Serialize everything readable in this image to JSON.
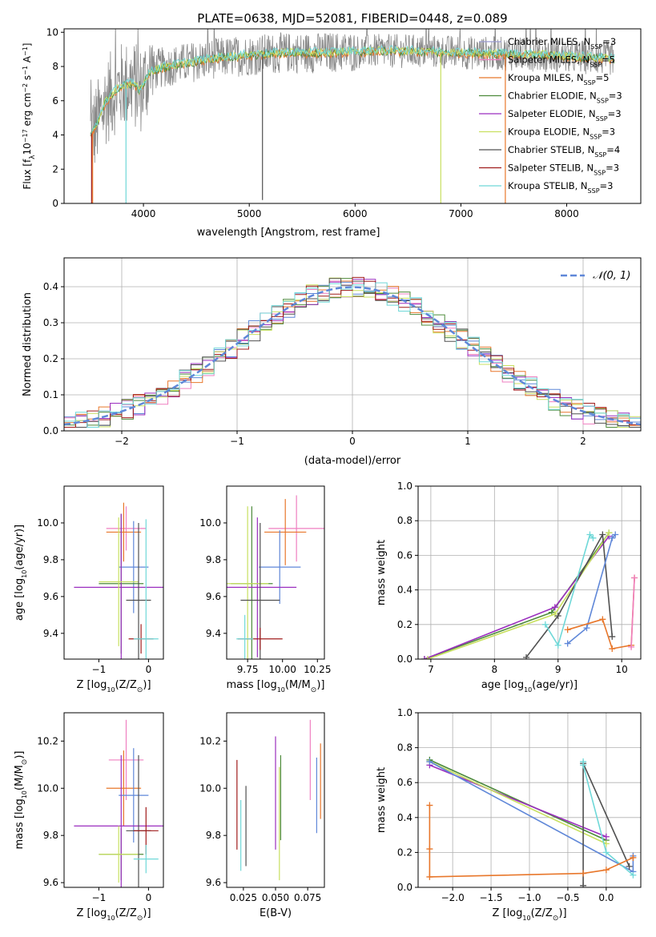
{
  "figure": {
    "title": "PLATE=0638, MJD=52081, FIBERID=0448, z=0.089"
  },
  "colors": {
    "chabrier_miles": "#9b9bd0",
    "salpeter_miles": "#ef7fc0",
    "kroupa_miles": "#e8772b",
    "chabrier_elodie": "#4c8a3a",
    "salpeter_elodie": "#9b2fbf",
    "kroupa_elodie": "#c8e060",
    "chabrier_stelib": "#505050",
    "salpeter_stelib": "#a01c1c",
    "kroupa_stelib": "#6fd8d8",
    "blue_model": "#5f87d8",
    "gaussian": "#5f87d8",
    "grid": "#b0b0b0"
  },
  "chart_data": [
    {
      "id": "spectrum",
      "type": "line",
      "xlabel": "wavelength [Angstrom, rest frame]",
      "ylabel_parts": [
        "Flux [f",
        "λ",
        "10",
        "−17",
        " erg cm",
        "−2",
        " s",
        "−1",
        " A",
        "−1",
        "]"
      ],
      "xlim": [
        3250,
        8700
      ],
      "ylim": [
        0,
        10.2
      ],
      "xticks": [
        4000,
        5000,
        6000,
        7000,
        8000
      ],
      "yticks": [
        0,
        2,
        4,
        6,
        8,
        10
      ],
      "grid": false,
      "legend_placement": "upper-right",
      "legend": [
        {
          "name": "Chabrier MILES, N",
          "sub": "SSP",
          "suffix": "=3",
          "color_key": "chabrier_miles"
        },
        {
          "name": "Salpeter MILES, N",
          "sub": "SSP",
          "suffix": "=5",
          "color_key": "salpeter_miles"
        },
        {
          "name": "Kroupa MILES, N",
          "sub": "SSP",
          "suffix": "=5",
          "color_key": "kroupa_miles"
        },
        {
          "name": "Chabrier ELODIE, N",
          "sub": "SSP",
          "suffix": "=3",
          "color_key": "chabrier_elodie"
        },
        {
          "name": "Salpeter ELODIE, N",
          "sub": "SSP",
          "suffix": "=3",
          "color_key": "salpeter_elodie"
        },
        {
          "name": "Kroupa ELODIE, N",
          "sub": "SSP",
          "suffix": "=3",
          "color_key": "kroupa_elodie"
        },
        {
          "name": "Chabrier STELIB, N",
          "sub": "SSP",
          "suffix": "=4",
          "color_key": "chabrier_stelib"
        },
        {
          "name": "Salpeter STELIB, N",
          "sub": "SSP",
          "suffix": "=3",
          "color_key": "salpeter_stelib"
        },
        {
          "name": "Kroupa STELIB, N",
          "sub": "SSP",
          "suffix": "=3",
          "color_key": "kroupa_stelib"
        }
      ],
      "continuum": {
        "x": [
          3500,
          3560,
          3640,
          3700,
          3800,
          3900,
          3970,
          4050,
          4150,
          4300,
          4500,
          4700,
          4900,
          5100,
          5300,
          5600,
          5900,
          6200,
          6500,
          6800,
          7100,
          7400,
          7700,
          8000,
          8300,
          8450
        ],
        "y": [
          4.0,
          4.6,
          5.9,
          6.4,
          6.9,
          7.0,
          6.6,
          7.6,
          7.9,
          8.1,
          8.3,
          8.5,
          8.6,
          8.7,
          8.8,
          8.8,
          8.85,
          8.9,
          8.9,
          8.85,
          8.8,
          8.75,
          8.7,
          8.6,
          8.5,
          8.45
        ]
      },
      "sharp_drops": [
        {
          "x": 3510,
          "y": 0,
          "color_key": "salpeter_stelib"
        },
        {
          "x": 3520,
          "y": 0,
          "color_key": "kroupa_miles"
        },
        {
          "x": 3835,
          "y": 0,
          "color_key": "kroupa_stelib"
        },
        {
          "x": 5125,
          "y": 0.2,
          "color_key": "chabrier_stelib"
        },
        {
          "x": 6810,
          "y": 0,
          "color_key": "kroupa_elodie"
        },
        {
          "x": 7420,
          "y": 0,
          "color_key": "kroupa_miles"
        }
      ]
    },
    {
      "id": "residuals",
      "type": "histogram",
      "xlabel": "(data-model)/error",
      "ylabel": "Normed distribution",
      "xlim": [
        -2.5,
        2.5
      ],
      "ylim": [
        0,
        0.48
      ],
      "xticks": [
        -2,
        -1,
        0,
        1,
        2
      ],
      "xtick_labels": [
        "−2",
        "−1",
        "0",
        "1",
        "2"
      ],
      "yticks": [
        0,
        0.1,
        0.2,
        0.3,
        0.4
      ],
      "ytick_labels": [
        "0.0",
        "0.1",
        "0.2",
        "0.3",
        "0.4"
      ],
      "grid": true,
      "legend_placement": "upper-right",
      "gaussian_label_prefix": "𝒩(0, 1)",
      "bin_width": 0.1,
      "x_start": -2.5,
      "series_count": 9
    },
    {
      "id": "age_vs_z",
      "type": "scatter",
      "xlabel": "Z [log",
      "xlabel_parts": [
        "Z [log",
        "10",
        "(Z/Z",
        "⊙",
        ")]"
      ],
      "ylabel_parts": [
        "age  [log",
        "10",
        "(age/yr)]"
      ],
      "xlim": [
        -1.7,
        0.3
      ],
      "ylim": [
        9.26,
        10.2
      ],
      "xticks": [
        -1,
        0
      ],
      "xtick_labels": [
        "−1",
        "0"
      ],
      "yticks": [
        9.4,
        9.6,
        9.8,
        10.0
      ],
      "ytick_labels": [
        "9.4",
        "9.6",
        "9.8",
        "10.0"
      ],
      "points": [
        {
          "x": -0.45,
          "y": 9.97,
          "xerr": 0.4,
          "yerr": 0.12,
          "color_key": "salpeter_miles"
        },
        {
          "x": -0.5,
          "y": 9.95,
          "xerr": 0.35,
          "yerr": 0.16,
          "color_key": "kroupa_miles"
        },
        {
          "x": -0.3,
          "y": 9.76,
          "xerr": 0.3,
          "yerr": 0.25,
          "color_key": "blue_model"
        },
        {
          "x": -0.55,
          "y": 9.67,
          "xerr": 0.45,
          "yerr": 0.38,
          "color_key": "chabrier_elodie"
        },
        {
          "x": -0.55,
          "y": 9.65,
          "xerr": 0.95,
          "yerr": 0.4,
          "color_key": "salpeter_elodie"
        },
        {
          "x": -0.6,
          "y": 9.68,
          "xerr": 0.4,
          "yerr": 0.35,
          "color_key": "kroupa_elodie"
        },
        {
          "x": -0.2,
          "y": 9.58,
          "xerr": 0.25,
          "yerr": 0.42,
          "color_key": "chabrier_stelib"
        },
        {
          "x": -0.15,
          "y": 9.37,
          "xerr": 0.25,
          "yerr": 0.08,
          "color_key": "salpeter_stelib"
        },
        {
          "x": -0.05,
          "y": 9.37,
          "xerr": 0.25,
          "yerr": 0.65,
          "color_key": "kroupa_stelib"
        }
      ]
    },
    {
      "id": "age_vs_mass",
      "type": "scatter",
      "xlabel_parts": [
        "mass [log",
        "10",
        "(M/M",
        "⊙",
        ")]"
      ],
      "xlim": [
        9.6,
        10.3
      ],
      "ylim": [
        9.26,
        10.2
      ],
      "xticks": [
        9.75,
        10.0,
        10.25
      ],
      "xtick_labels": [
        "9.75",
        "10.00",
        "10.25"
      ],
      "yticks": [
        9.4,
        9.6,
        9.8,
        10.0
      ],
      "ytick_labels": [
        "9.4",
        "9.6",
        "9.8",
        "10.0"
      ],
      "points": [
        {
          "x": 10.1,
          "y": 9.97,
          "xerr": 0.2,
          "yerr": 0.18,
          "color_key": "salpeter_miles"
        },
        {
          "x": 10.02,
          "y": 9.95,
          "xerr": 0.15,
          "yerr": 0.18,
          "color_key": "kroupa_miles"
        },
        {
          "x": 9.98,
          "y": 9.76,
          "xerr": 0.15,
          "yerr": 0.2,
          "color_key": "blue_model"
        },
        {
          "x": 9.78,
          "y": 9.67,
          "xerr": 0.15,
          "yerr": 0.42,
          "color_key": "chabrier_elodie"
        },
        {
          "x": 9.82,
          "y": 9.65,
          "xerr": 0.28,
          "yerr": 0.38,
          "color_key": "salpeter_elodie"
        },
        {
          "x": 9.75,
          "y": 9.67,
          "xerr": 0.15,
          "yerr": 0.42,
          "color_key": "kroupa_elodie"
        },
        {
          "x": 9.84,
          "y": 9.58,
          "xerr": 0.14,
          "yerr": 0.42,
          "color_key": "chabrier_stelib"
        },
        {
          "x": 9.84,
          "y": 9.37,
          "xerr": 0.16,
          "yerr": 0.06,
          "color_key": "salpeter_stelib"
        },
        {
          "x": 9.73,
          "y": 9.37,
          "xerr": 0.06,
          "yerr": 0.13,
          "color_key": "kroupa_stelib"
        }
      ]
    },
    {
      "id": "weight_vs_age",
      "type": "line",
      "xlabel_parts": [
        "age  [log",
        "10",
        "(age/yr)]"
      ],
      "ylabel": "mass weight",
      "xlim": [
        6.8,
        10.3
      ],
      "ylim": [
        0,
        1.0
      ],
      "xticks": [
        7,
        8,
        9,
        10
      ],
      "yticks": [
        0.0,
        0.2,
        0.4,
        0.6,
        0.8,
        1.0
      ],
      "ytick_labels": [
        "0.0",
        "0.2",
        "0.4",
        "0.6",
        "0.8",
        "1.0"
      ],
      "grid": true,
      "series": [
        {
          "color_key": "chabrier_elodie",
          "x": [
            6.9,
            8.9,
            9.8
          ],
          "y": [
            0.0,
            0.27,
            0.73
          ]
        },
        {
          "color_key": "salpeter_elodie",
          "x": [
            6.9,
            8.95,
            9.8
          ],
          "y": [
            0.0,
            0.3,
            0.71
          ]
        },
        {
          "color_key": "kroupa_elodie",
          "x": [
            6.95,
            8.95,
            9.8
          ],
          "y": [
            0.0,
            0.26,
            0.73
          ]
        },
        {
          "color_key": "chabrier_stelib",
          "x": [
            8.5,
            9.0,
            9.7,
            9.85
          ],
          "y": [
            0.01,
            0.25,
            0.72,
            0.13
          ]
        },
        {
          "color_key": "kroupa_stelib",
          "x": [
            8.8,
            9.0,
            9.5,
            9.55
          ],
          "y": [
            0.2,
            0.08,
            0.72,
            0.7
          ]
        },
        {
          "color_key": "blue_model",
          "x": [
            9.15,
            9.45,
            9.85,
            9.9
          ],
          "y": [
            0.09,
            0.18,
            0.7,
            0.72
          ]
        },
        {
          "color_key": "kroupa_miles",
          "x": [
            9.15,
            9.7,
            9.85,
            10.15,
            10.2
          ],
          "y": [
            0.17,
            0.23,
            0.06,
            0.08,
            0.47
          ]
        },
        {
          "color_key": "salpeter_miles",
          "x": [
            10.15,
            10.2
          ],
          "y": [
            0.07,
            0.47
          ]
        }
      ]
    },
    {
      "id": "mass_vs_z",
      "type": "scatter",
      "xlabel_parts": [
        "Z [log",
        "10",
        "(Z/Z",
        "⊙",
        ")]"
      ],
      "ylabel_parts": [
        "mass [log",
        "10",
        "(M/M",
        "⊙",
        ")]"
      ],
      "xlim": [
        -1.7,
        0.3
      ],
      "ylim": [
        9.58,
        10.32
      ],
      "xticks": [
        -1,
        0
      ],
      "xtick_labels": [
        "−1",
        "0"
      ],
      "yticks": [
        9.6,
        9.8,
        10.0,
        10.2
      ],
      "ytick_labels": [
        "9.6",
        "9.8",
        "10.0",
        "10.2"
      ],
      "points": [
        {
          "x": -0.45,
          "y": 10.12,
          "xerr": 0.35,
          "yerr": 0.17,
          "color_key": "salpeter_miles"
        },
        {
          "x": -0.5,
          "y": 10.0,
          "xerr": 0.35,
          "yerr": 0.16,
          "color_key": "kroupa_miles"
        },
        {
          "x": -0.3,
          "y": 9.97,
          "xerr": 0.3,
          "yerr": 0.2,
          "color_key": "blue_model"
        },
        {
          "x": -0.55,
          "y": 9.72,
          "xerr": 0.45,
          "yerr": 0.11,
          "color_key": "chabrier_elodie"
        },
        {
          "x": -0.55,
          "y": 9.84,
          "xerr": 0.95,
          "yerr": 0.3,
          "color_key": "salpeter_elodie"
        },
        {
          "x": -0.6,
          "y": 9.72,
          "xerr": 0.4,
          "yerr": 0.12,
          "color_key": "kroupa_elodie"
        },
        {
          "x": -0.2,
          "y": 9.82,
          "xerr": 0.25,
          "yerr": 0.32,
          "color_key": "chabrier_stelib"
        },
        {
          "x": -0.05,
          "y": 9.82,
          "xerr": 0.25,
          "yerr": 0.1,
          "color_key": "salpeter_stelib"
        },
        {
          "x": -0.05,
          "y": 9.7,
          "xerr": 0.25,
          "yerr": 0.06,
          "color_key": "kroupa_stelib"
        }
      ]
    },
    {
      "id": "mass_vs_ebv",
      "type": "scatter",
      "xlabel": "E(B-V)",
      "xlim": [
        0.012,
        0.088
      ],
      "ylim": [
        9.58,
        10.32
      ],
      "xticks": [
        0.025,
        0.05,
        0.075
      ],
      "xtick_labels": [
        "0.025",
        "0.050",
        "0.075"
      ],
      "yticks": [
        9.6,
        9.8,
        10.0,
        10.2
      ],
      "ytick_labels": [
        "9.6",
        "9.8",
        "10.0",
        "10.2"
      ],
      "points": [
        {
          "x": 0.077,
          "y": 10.12,
          "yerr": 0.17,
          "color_key": "salpeter_miles"
        },
        {
          "x": 0.085,
          "y": 10.03,
          "yerr": 0.16,
          "color_key": "kroupa_miles"
        },
        {
          "x": 0.082,
          "y": 9.97,
          "yerr": 0.16,
          "color_key": "blue_model"
        },
        {
          "x": 0.054,
          "y": 9.96,
          "yerr": 0.18,
          "color_key": "chabrier_elodie"
        },
        {
          "x": 0.05,
          "y": 9.98,
          "yerr": 0.24,
          "color_key": "salpeter_elodie"
        },
        {
          "x": 0.053,
          "y": 9.85,
          "yerr": 0.24,
          "color_key": "kroupa_elodie"
        },
        {
          "x": 0.027,
          "y": 9.84,
          "yerr": 0.17,
          "color_key": "chabrier_stelib"
        },
        {
          "x": 0.02,
          "y": 9.93,
          "yerr": 0.19,
          "color_key": "salpeter_stelib"
        },
        {
          "x": 0.023,
          "y": 9.8,
          "yerr": 0.15,
          "color_key": "kroupa_stelib"
        }
      ]
    },
    {
      "id": "weight_vs_z",
      "type": "line",
      "xlabel_parts": [
        "Z [log",
        "10",
        "(Z/Z",
        "⊙",
        ")]"
      ],
      "ylabel": "mass weight",
      "xlim": [
        -2.45,
        0.45
      ],
      "ylim": [
        0,
        1.0
      ],
      "xticks": [
        -2.0,
        -1.5,
        -1.0,
        -0.5,
        0.0
      ],
      "xtick_labels": [
        "−2.0",
        "−1.5",
        "−1.0",
        "−0.5",
        "0.0"
      ],
      "yticks": [
        0.0,
        0.2,
        0.4,
        0.6,
        0.8,
        1.0
      ],
      "ytick_labels": [
        "0.0",
        "0.2",
        "0.4",
        "0.6",
        "0.8",
        "1.0"
      ],
      "grid": true,
      "series": [
        {
          "color_key": "chabrier_elodie",
          "x": [
            -2.3,
            0.0
          ],
          "y": [
            0.73,
            0.27
          ]
        },
        {
          "color_key": "salpeter_elodie",
          "x": [
            -2.3,
            0.0
          ],
          "y": [
            0.7,
            0.29
          ]
        },
        {
          "color_key": "kroupa_elodie",
          "x": [
            -2.3,
            0.0
          ],
          "y": [
            0.72,
            0.25
          ]
        },
        {
          "color_key": "blue_model",
          "x": [
            -2.3,
            0.35,
            0.35
          ],
          "y": [
            0.72,
            0.09,
            0.18
          ]
        },
        {
          "color_key": "chabrier_stelib",
          "x": [
            -0.3,
            -0.3,
            0.3
          ],
          "y": [
            0.01,
            0.71,
            0.12
          ]
        },
        {
          "color_key": "kroupa_stelib",
          "x": [
            -0.3,
            -0.3,
            0.0,
            0.35
          ],
          "y": [
            0.72,
            0.7,
            0.2,
            0.07
          ]
        },
        {
          "color_key": "kroupa_miles",
          "x": [
            -2.3,
            -2.3,
            -2.3,
            -0.3,
            0.0,
            0.35
          ],
          "y": [
            0.47,
            0.22,
            0.06,
            0.08,
            0.1,
            0.17
          ]
        }
      ]
    }
  ]
}
